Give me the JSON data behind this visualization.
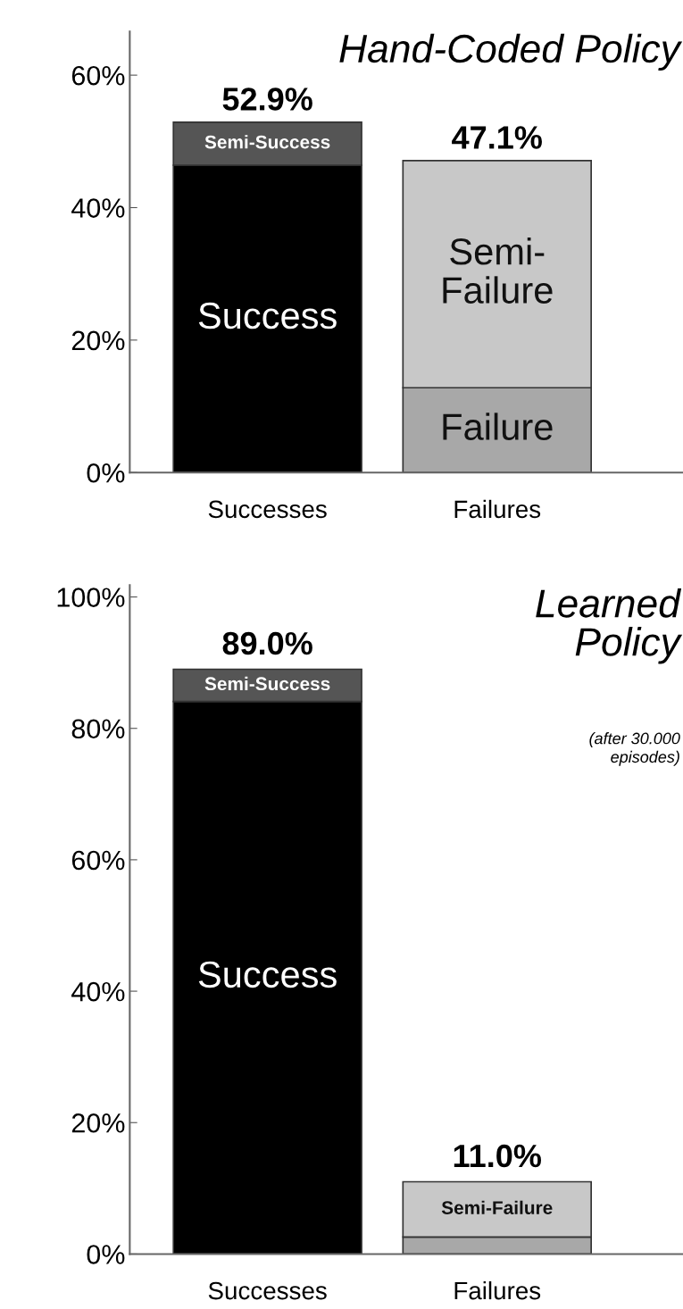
{
  "chart_data": [
    {
      "type": "bar",
      "title": "Hand-Coded Policy",
      "categories": [
        "Successes",
        "Failures"
      ],
      "stacked": true,
      "series": [
        {
          "name": "Success",
          "color": "#000000",
          "values": [
            46.4,
            null
          ]
        },
        {
          "name": "Semi-Success",
          "color": "#555555",
          "values": [
            6.5,
            null
          ]
        },
        {
          "name": "Failure",
          "color": "#a8a8a8",
          "values": [
            null,
            12.8
          ]
        },
        {
          "name": "Semi-\nFailure",
          "color": "#c8c8c8",
          "values": [
            null,
            34.3
          ]
        }
      ],
      "totals": [
        "52.9%",
        "47.1%"
      ],
      "ylim": [
        0,
        66.6
      ],
      "yticks": [
        {
          "value": 0,
          "label": "0%"
        },
        {
          "value": 20,
          "label": "20%"
        },
        {
          "value": 40,
          "label": "40%"
        },
        {
          "value": 60,
          "label": "60%"
        }
      ],
      "grid": false,
      "legend": false
    },
    {
      "type": "bar",
      "title": "Learned\nPolicy",
      "subtitle": "(after 30.000\nepisodes)",
      "categories": [
        "Successes",
        "Failures"
      ],
      "stacked": true,
      "series": [
        {
          "name": "Success",
          "color": "#000000",
          "values": [
            84.1,
            null
          ]
        },
        {
          "name": "Semi-Success",
          "color": "#555555",
          "values": [
            4.9,
            null
          ]
        },
        {
          "color": "#a8a8a8",
          "values": [
            null,
            2.6
          ]
        },
        {
          "name": "Semi-Failure",
          "color": "#c8c8c8",
          "values": [
            null,
            8.4
          ]
        }
      ],
      "totals": [
        "89.0%",
        "11.0%"
      ],
      "ylim": [
        0,
        101.8
      ],
      "yticks": [
        {
          "value": 0,
          "label": "0%"
        },
        {
          "value": 20,
          "label": "20%"
        },
        {
          "value": 40,
          "label": "40%"
        },
        {
          "value": 60,
          "label": "60%"
        },
        {
          "value": 80,
          "label": "80%"
        },
        {
          "value": 100,
          "label": "100%"
        }
      ],
      "grid": false,
      "legend": false
    }
  ]
}
